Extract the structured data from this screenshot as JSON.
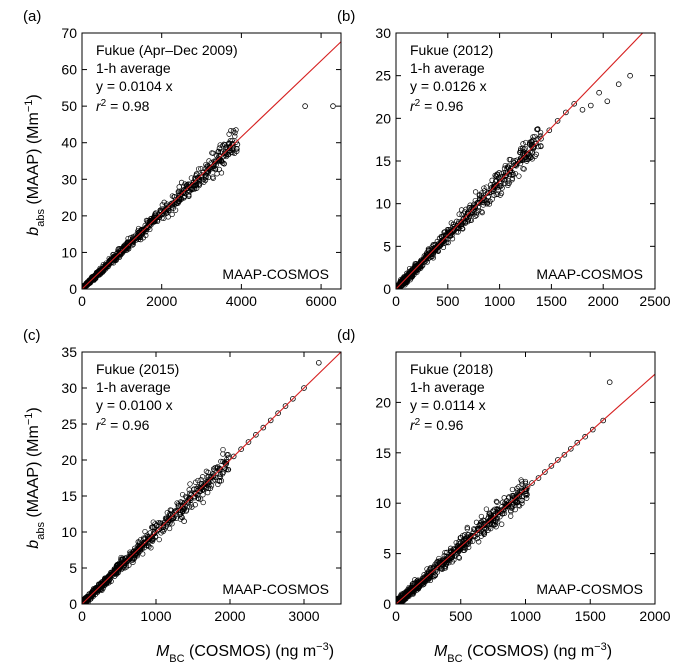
{
  "chart_data": [
    {
      "type": "scatter",
      "panel_label": "(a)",
      "annotation_lines": [
        "Fukue (Apr–Dec 2009)",
        "1-h average",
        "y = 0.0104 x"
      ],
      "r2_label": [
        "r",
        "2",
        " = 0.98"
      ],
      "instrument_label": "MAAP-COSMOS",
      "xlim": [
        0,
        6500
      ],
      "ylim": [
        0,
        70
      ],
      "xticks": [
        0,
        2000,
        4000,
        6000
      ],
      "yticks": [
        0,
        10,
        20,
        30,
        40,
        50,
        60,
        70
      ],
      "fit_slope": 0.0104,
      "r2": 0.98,
      "x_samples": [
        60,
        120,
        200,
        280,
        350,
        430,
        500,
        580,
        650,
        720,
        800,
        880,
        950,
        1020,
        1100,
        1180,
        1250,
        1320,
        1400,
        1480,
        1550,
        1620,
        1700,
        1780,
        1850,
        1950,
        2050,
        2150,
        2250,
        2350,
        2450,
        2550,
        2650,
        2800,
        3000,
        3200,
        3350,
        3450,
        3600,
        3900,
        5600,
        6300
      ],
      "y_samples": [
        0.7,
        1.3,
        2.1,
        3.0,
        3.6,
        4.4,
        5.3,
        6.1,
        6.7,
        7.6,
        8.3,
        9.1,
        9.9,
        10.7,
        11.4,
        12.3,
        13.0,
        13.7,
        14.6,
        15.3,
        16.2,
        16.8,
        17.7,
        18.5,
        19.3,
        20.3,
        21.3,
        22.4,
        23.4,
        24.4,
        25.5,
        26.5,
        27.6,
        29.1,
        31.2,
        33.3,
        34.9,
        38.5,
        37.5,
        39.5,
        50,
        50
      ]
    },
    {
      "type": "scatter",
      "panel_label": "(b)",
      "annotation_lines": [
        "Fukue (2012)",
        "1-h average",
        "y = 0.0126 x"
      ],
      "r2_label": [
        "r",
        "2",
        " = 0.96"
      ],
      "instrument_label": "MAAP-COSMOS",
      "xlim": [
        0,
        2500
      ],
      "ylim": [
        0,
        30
      ],
      "xticks": [
        0,
        500,
        1000,
        1500,
        2000,
        2500
      ],
      "yticks": [
        0,
        5,
        10,
        15,
        20,
        25,
        30
      ],
      "fit_slope": 0.0126,
      "r2": 0.96,
      "x_samples": [
        30,
        70,
        110,
        150,
        190,
        230,
        270,
        310,
        350,
        400,
        450,
        500,
        550,
        600,
        650,
        700,
        750,
        800,
        850,
        900,
        950,
        1000,
        1050,
        1100,
        1150,
        1200,
        1260,
        1320,
        1400,
        1480,
        1560,
        1640,
        1720,
        1800,
        1880,
        1960,
        2040,
        2150,
        2260
      ],
      "y_samples": [
        0.4,
        0.9,
        1.4,
        1.9,
        2.4,
        2.9,
        3.4,
        3.9,
        4.4,
        5.0,
        5.7,
        6.3,
        6.9,
        7.6,
        8.2,
        8.8,
        9.5,
        10.1,
        10.7,
        11.3,
        12.0,
        12.6,
        13.2,
        13.9,
        14.5,
        15.1,
        15.9,
        16.6,
        17.6,
        18.6,
        19.7,
        20.7,
        21.7,
        21.0,
        21.5,
        23.0,
        22.0,
        24.0,
        25.0
      ]
    },
    {
      "type": "scatter",
      "panel_label": "(c)",
      "annotation_lines": [
        "Fukue (2015)",
        "1-h average",
        "y = 0.0100 x"
      ],
      "r2_label": [
        "r",
        "2",
        " = 0.96"
      ],
      "instrument_label": "MAAP-COSMOS",
      "xlim": [
        0,
        3500
      ],
      "ylim": [
        0,
        35
      ],
      "xticks": [
        0,
        1000,
        2000,
        3000
      ],
      "yticks": [
        0,
        5,
        10,
        15,
        20,
        25,
        30,
        35
      ],
      "fit_slope": 0.01,
      "r2": 0.96,
      "x_samples": [
        40,
        90,
        140,
        200,
        260,
        320,
        380,
        440,
        500,
        560,
        620,
        680,
        740,
        800,
        860,
        920,
        980,
        1040,
        1100,
        1160,
        1220,
        1300,
        1380,
        1460,
        1540,
        1620,
        1700,
        1780,
        1860,
        1950,
        2050,
        2150,
        2250,
        2350,
        2450,
        2550,
        2650,
        2750,
        2850,
        3000,
        3200
      ],
      "y_samples": [
        0.4,
        0.9,
        1.4,
        2.0,
        2.6,
        3.2,
        3.8,
        4.4,
        5.0,
        5.6,
        6.2,
        6.8,
        7.4,
        8.0,
        8.6,
        9.2,
        9.8,
        10.4,
        11.0,
        11.6,
        12.2,
        13.0,
        11.5,
        14.6,
        15.4,
        16.2,
        17.0,
        17.8,
        18.6,
        19.5,
        20.5,
        21.5,
        22.5,
        23.5,
        24.5,
        25.5,
        26.5,
        27.5,
        28.5,
        30.0,
        33.5
      ]
    },
    {
      "type": "scatter",
      "panel_label": "(d)",
      "annotation_lines": [
        "Fukue (2018)",
        "1-h average",
        "y = 0.0114 x"
      ],
      "r2_label": [
        "r",
        "2",
        " = 0.96"
      ],
      "instrument_label": "MAAP-COSMOS",
      "xlim": [
        0,
        2000
      ],
      "ylim": [
        0,
        25
      ],
      "xticks": [
        0,
        500,
        1000,
        1500,
        2000
      ],
      "yticks": [
        0,
        5,
        10,
        15,
        20
      ],
      "fit_slope": 0.0114,
      "r2": 0.96,
      "x_samples": [
        20,
        50,
        80,
        110,
        140,
        170,
        200,
        240,
        280,
        320,
        360,
        400,
        440,
        480,
        520,
        560,
        600,
        640,
        680,
        720,
        760,
        800,
        850,
        900,
        950,
        1000,
        1050,
        1100,
        1150,
        1200,
        1250,
        1300,
        1350,
        1400,
        1460,
        1520,
        1600,
        1650
      ],
      "y_samples": [
        0.2,
        0.6,
        0.9,
        1.3,
        1.6,
        1.9,
        2.3,
        2.7,
        3.2,
        3.6,
        4.1,
        4.6,
        5.0,
        5.5,
        5.9,
        6.4,
        6.8,
        7.3,
        7.8,
        8.2,
        8.7,
        9.1,
        9.7,
        10.3,
        10.8,
        11.4,
        12.0,
        12.5,
        13.1,
        13.7,
        14.3,
        14.8,
        15.4,
        16.0,
        16.6,
        17.3,
        18.2,
        22.0
      ]
    }
  ],
  "axis_labels": {
    "y_main": "b",
    "y_sub": "abs",
    "y_rest": " (MAAP) (Mm",
    "y_sup": "−1",
    "y_close": ")",
    "x_main": "M",
    "x_sub": "BC",
    "x_rest": " (COSMOS) (ng m",
    "x_sup": "−3",
    "x_close": ")"
  },
  "colors": {
    "fit_line": "#d62020",
    "marker": "#000000",
    "frame": "#000000"
  }
}
